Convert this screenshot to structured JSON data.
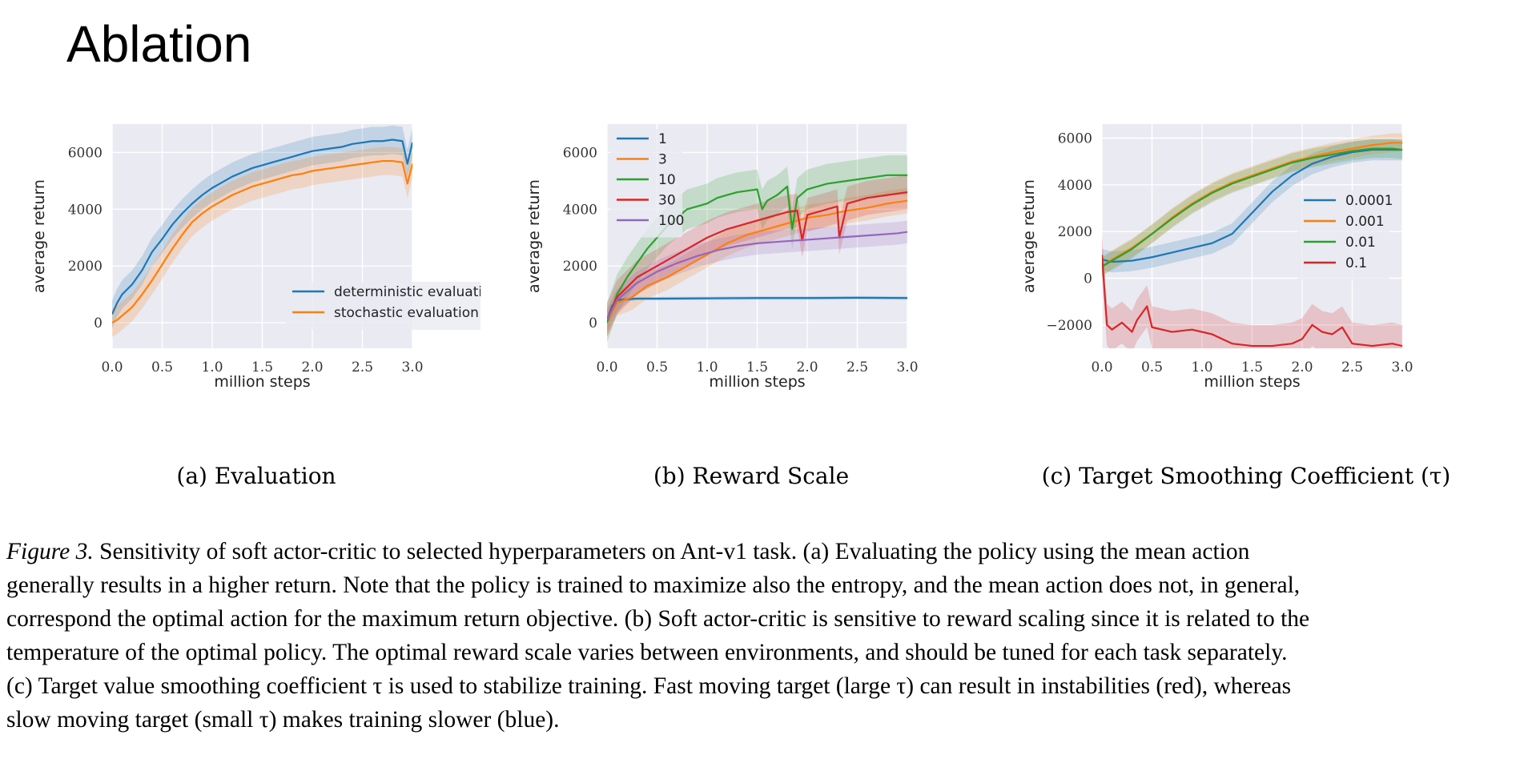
{
  "slide": {
    "title": "Ablation"
  },
  "colors": {
    "blue": "#1f77b4",
    "orange": "#ff7f0e",
    "green": "#2ca02c",
    "red": "#d62728",
    "purple": "#9467bd",
    "plot_bg": "#eaeaf2",
    "grid": "#ffffff"
  },
  "chart_data": [
    {
      "type": "line",
      "subtitle": "(a) Evaluation",
      "xlabel": "million steps",
      "ylabel": "average return",
      "xlim": [
        0,
        3
      ],
      "ylim": [
        -900,
        7000
      ],
      "xticks": [
        "0.0",
        "0.5",
        "1.0",
        "1.5",
        "2.0",
        "2.5",
        "3.0"
      ],
      "yticks": [
        "0",
        "2000",
        "4000",
        "6000"
      ],
      "grid": true,
      "legend": "bottom-right",
      "series": [
        {
          "name": "deterministic evaluation",
          "color": "#1f77b4",
          "band": 500,
          "x": [
            0,
            0.05,
            0.1,
            0.2,
            0.3,
            0.4,
            0.5,
            0.6,
            0.7,
            0.8,
            0.9,
            1.0,
            1.1,
            1.2,
            1.3,
            1.4,
            1.5,
            1.6,
            1.7,
            1.8,
            1.9,
            2.0,
            2.1,
            2.2,
            2.3,
            2.4,
            2.5,
            2.6,
            2.7,
            2.8,
            2.9,
            2.95,
            3.0
          ],
          "y": [
            300,
            700,
            1000,
            1350,
            1850,
            2500,
            2950,
            3450,
            3850,
            4200,
            4500,
            4750,
            4950,
            5150,
            5300,
            5450,
            5550,
            5650,
            5750,
            5850,
            5950,
            6050,
            6100,
            6150,
            6200,
            6300,
            6350,
            6400,
            6400,
            6450,
            6400,
            5600,
            6350
          ]
        },
        {
          "name": "stochastic evaluation",
          "color": "#ff7f0e",
          "band": 500,
          "x": [
            0,
            0.05,
            0.1,
            0.2,
            0.3,
            0.4,
            0.5,
            0.6,
            0.7,
            0.8,
            0.9,
            1.0,
            1.1,
            1.2,
            1.3,
            1.4,
            1.5,
            1.6,
            1.7,
            1.8,
            1.9,
            2.0,
            2.1,
            2.2,
            2.3,
            2.4,
            2.5,
            2.6,
            2.7,
            2.8,
            2.9,
            2.95,
            3.0
          ],
          "y": [
            0,
            100,
            250,
            550,
            1000,
            1500,
            2050,
            2600,
            3100,
            3550,
            3850,
            4100,
            4300,
            4500,
            4650,
            4800,
            4900,
            5000,
            5100,
            5200,
            5250,
            5350,
            5400,
            5450,
            5500,
            5550,
            5600,
            5650,
            5700,
            5700,
            5650,
            4900,
            5600
          ]
        }
      ]
    },
    {
      "type": "line",
      "subtitle": "(b) Reward Scale",
      "xlabel": "million steps",
      "ylabel": "average return",
      "xlim": [
        0,
        3
      ],
      "ylim": [
        -900,
        7000
      ],
      "xticks": [
        "0.0",
        "0.5",
        "1.0",
        "1.5",
        "2.0",
        "2.5",
        "3.0"
      ],
      "yticks": [
        "0",
        "2000",
        "4000",
        "6000"
      ],
      "grid": true,
      "legend": "top-left",
      "series": [
        {
          "name": "1",
          "color": "#1f77b4",
          "band": 60,
          "x": [
            0,
            0.05,
            0.1,
            0.3,
            0.5,
            1.0,
            1.5,
            2.0,
            2.5,
            3.0
          ],
          "y": [
            100,
            600,
            800,
            850,
            850,
            860,
            870,
            870,
            880,
            870
          ]
        },
        {
          "name": "3",
          "color": "#ff7f0e",
          "band": 450,
          "x": [
            0,
            0.1,
            0.25,
            0.4,
            0.6,
            0.8,
            1.0,
            1.2,
            1.4,
            1.6,
            1.8,
            2.0,
            2.2,
            2.4,
            2.6,
            2.8,
            3.0
          ],
          "y": [
            0,
            700,
            900,
            1300,
            1600,
            2000,
            2400,
            2800,
            3100,
            3300,
            3500,
            3700,
            3800,
            3950,
            4050,
            4200,
            4300
          ]
        },
        {
          "name": "10",
          "color": "#2ca02c",
          "band": 700,
          "x": [
            0,
            0.1,
            0.2,
            0.3,
            0.4,
            0.5,
            0.6,
            0.7,
            0.8,
            0.9,
            1.0,
            1.1,
            1.2,
            1.3,
            1.4,
            1.5,
            1.55,
            1.6,
            1.7,
            1.8,
            1.85,
            1.9,
            2.0,
            2.2,
            2.4,
            2.6,
            2.8,
            3.0
          ],
          "y": [
            0,
            1000,
            1600,
            2100,
            2600,
            3000,
            3400,
            3700,
            4000,
            4100,
            4200,
            4400,
            4500,
            4600,
            4650,
            4700,
            4000,
            4300,
            4500,
            4800,
            3300,
            4400,
            4700,
            4900,
            5000,
            5100,
            5200,
            5200
          ]
        },
        {
          "name": "30",
          "color": "#d62728",
          "band": 600,
          "x": [
            0,
            0.1,
            0.3,
            0.5,
            0.7,
            0.9,
            1.0,
            1.2,
            1.4,
            1.6,
            1.8,
            1.9,
            1.95,
            2.0,
            2.1,
            2.2,
            2.3,
            2.32,
            2.4,
            2.6,
            2.8,
            3.0
          ],
          "y": [
            100,
            900,
            1600,
            2000,
            2400,
            2800,
            3000,
            3300,
            3500,
            3700,
            3900,
            3950,
            2900,
            3800,
            3900,
            4000,
            4100,
            3000,
            4200,
            4400,
            4500,
            4600
          ]
        },
        {
          "name": "100",
          "color": "#9467bd",
          "band": 400,
          "x": [
            0,
            0.1,
            0.3,
            0.5,
            0.7,
            0.9,
            1.1,
            1.3,
            1.5,
            1.7,
            1.9,
            2.1,
            2.3,
            2.5,
            2.7,
            2.9,
            3.0
          ],
          "y": [
            100,
            800,
            1400,
            1800,
            2100,
            2350,
            2550,
            2700,
            2800,
            2850,
            2900,
            2950,
            3000,
            3050,
            3100,
            3150,
            3200
          ]
        }
      ]
    },
    {
      "type": "line",
      "subtitle": "(c) Target Smoothing Coefficient (τ)",
      "xlabel": "million steps",
      "ylabel": "average return",
      "xlim": [
        0,
        3
      ],
      "ylim": [
        -3000,
        6600
      ],
      "xticks": [
        "0.0",
        "0.5",
        "1.0",
        "1.5",
        "2.0",
        "2.5",
        "3.0"
      ],
      "yticks": [
        "−2000",
        "0",
        "2000",
        "4000",
        "6000"
      ],
      "yvals": [
        -2000,
        0,
        2000,
        4000,
        6000
      ],
      "grid": true,
      "legend": "center-right",
      "series": [
        {
          "name": "0.0001",
          "color": "#1f77b4",
          "band": 450,
          "x": [
            0,
            0.1,
            0.3,
            0.5,
            0.7,
            0.9,
            1.1,
            1.3,
            1.5,
            1.7,
            1.9,
            2.1,
            2.3,
            2.5,
            2.7,
            2.9,
            3.0
          ],
          "y": [
            800,
            700,
            750,
            900,
            1100,
            1300,
            1500,
            1900,
            2800,
            3700,
            4400,
            4900,
            5200,
            5400,
            5500,
            5500,
            5500
          ]
        },
        {
          "name": "0.001",
          "color": "#ff7f0e",
          "band": 400,
          "x": [
            0,
            0.1,
            0.3,
            0.5,
            0.7,
            0.9,
            1.1,
            1.3,
            1.5,
            1.7,
            1.9,
            2.1,
            2.3,
            2.5,
            2.7,
            2.9,
            3.0
          ],
          "y": [
            500,
            800,
            1300,
            1900,
            2600,
            3200,
            3700,
            4100,
            4400,
            4700,
            5000,
            5200,
            5400,
            5550,
            5700,
            5800,
            5800
          ]
        },
        {
          "name": "0.01",
          "color": "#2ca02c",
          "band": 400,
          "x": [
            0,
            0.1,
            0.3,
            0.5,
            0.7,
            0.9,
            1.1,
            1.3,
            1.5,
            1.7,
            1.9,
            2.1,
            2.3,
            2.5,
            2.7,
            2.9,
            3.0
          ],
          "y": [
            500,
            750,
            1250,
            1900,
            2550,
            3150,
            3650,
            4050,
            4350,
            4650,
            4950,
            5150,
            5300,
            5450,
            5550,
            5550,
            5500
          ]
        },
        {
          "name": "0.1",
          "color": "#d62728",
          "band": 900,
          "x": [
            0,
            0.05,
            0.1,
            0.2,
            0.3,
            0.35,
            0.45,
            0.5,
            0.7,
            0.9,
            1.1,
            1.2,
            1.3,
            1.5,
            1.7,
            1.9,
            2.0,
            2.1,
            2.2,
            2.3,
            2.4,
            2.5,
            2.7,
            2.9,
            3.0
          ],
          "y": [
            1000,
            -2000,
            -2200,
            -1900,
            -2300,
            -1800,
            -1200,
            -2100,
            -2300,
            -2200,
            -2400,
            -2600,
            -2800,
            -2900,
            -2900,
            -2800,
            -2600,
            -2000,
            -2300,
            -2400,
            -2100,
            -2800,
            -2900,
            -2800,
            -2900
          ]
        }
      ]
    }
  ],
  "captions": [
    "(a) Evaluation",
    "(b) Reward Scale",
    "(c) Target Smoothing Coefficient (τ)"
  ],
  "figure_caption": {
    "label": "Figure 3.",
    "lines": [
      " Sensitivity of soft actor-critic to selected hyperparameters on Ant-v1 task.  (a) Evaluating the policy using the mean action",
      "generally results in a higher return. Note that the policy is trained to maximize also the entropy, and the mean action does not, in general,",
      "correspond the optimal action for the maximum return objective. (b) Soft actor-critic is sensitive to reward scaling since it is related to the",
      "temperature of the optimal policy. The optimal reward scale varies between environments, and should be tuned for each task separately.",
      "(c) Target value smoothing coefficient τ is used to stabilize training. Fast moving target (large τ) can result in instabilities (red), whereas",
      "slow moving target (small τ) makes training slower (blue)."
    ]
  }
}
